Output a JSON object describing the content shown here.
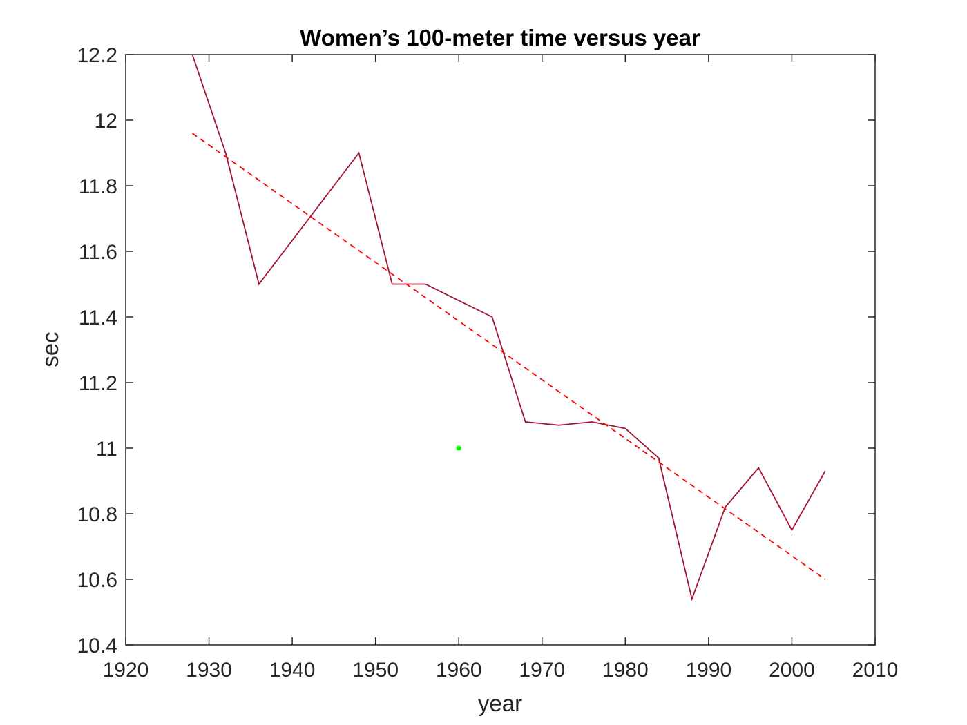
{
  "chart_data": {
    "type": "line",
    "title": "Women’s 100-meter time versus year",
    "xlabel": "year",
    "ylabel": "sec",
    "xlim": [
      1920,
      2010
    ],
    "ylim": [
      10.4,
      12.2
    ],
    "xticks": [
      1920,
      1930,
      1940,
      1950,
      1960,
      1970,
      1980,
      1990,
      2000,
      2010
    ],
    "yticks": [
      10.4,
      10.6,
      10.8,
      11,
      11.2,
      11.4,
      11.6,
      11.8,
      12,
      12.2
    ],
    "xtick_labels": [
      "1920",
      "1930",
      "1940",
      "1950",
      "1960",
      "1970",
      "1980",
      "1990",
      "2000",
      "2010"
    ],
    "ytick_labels": [
      "10.4",
      "10.6",
      "10.8",
      "11",
      "11.2",
      "11.4",
      "11.6",
      "11.8",
      "12",
      "12.2"
    ],
    "grid": false,
    "series": [
      {
        "style": "solid",
        "color": "#a2142f",
        "x": [
          1928,
          1932,
          1936,
          1948,
          1952,
          1956,
          1964,
          1968,
          1972,
          1976,
          1980,
          1984,
          1988,
          1992,
          1996,
          2000,
          2004
        ],
        "y": [
          12.2,
          11.9,
          11.5,
          11.9,
          11.5,
          11.5,
          11.4,
          11.08,
          11.07,
          11.08,
          11.06,
          10.97,
          10.54,
          10.82,
          10.94,
          10.75,
          10.93
        ]
      },
      {
        "style": "dashed",
        "color": "#ff0000",
        "x": [
          1928,
          2004
        ],
        "y": [
          11.96,
          10.6
        ]
      },
      {
        "style": "marker",
        "color": "#00ff00",
        "x": [
          1960
        ],
        "y": [
          11.0
        ]
      }
    ]
  }
}
